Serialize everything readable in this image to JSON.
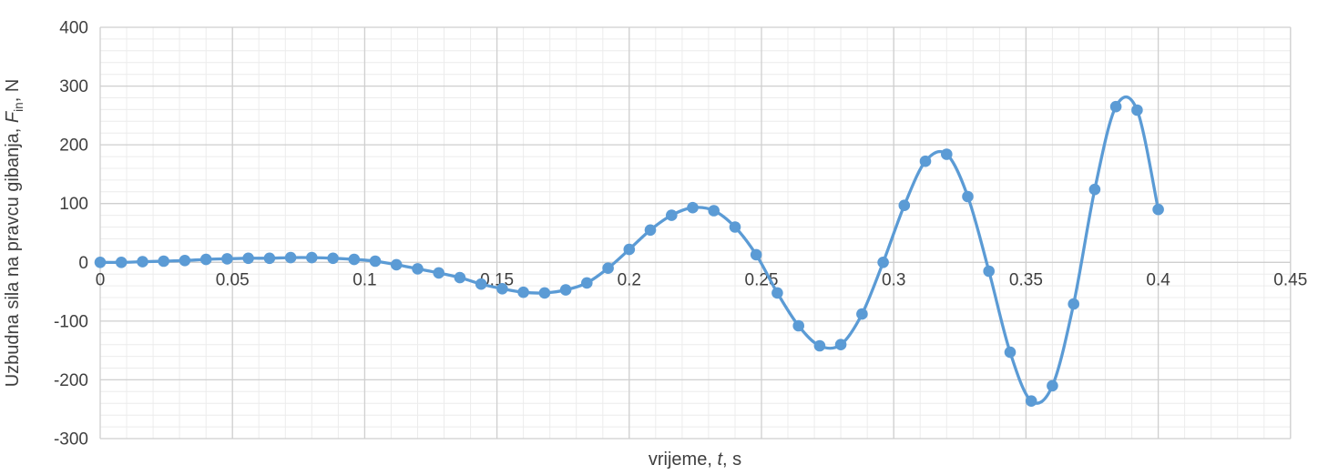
{
  "chart_data": {
    "type": "line",
    "title": "",
    "xlabel_prefix": "vrijeme, ",
    "xlabel_symbol": "t",
    "xlabel_suffix": ", s",
    "ylabel_prefix": "Uzbudna sila na pravcu gibanja, ",
    "ylabel_symbol": "F",
    "ylabel_subscript": "in",
    "ylabel_suffix": ", N",
    "xlim": [
      0,
      0.45
    ],
    "ylim": [
      -300,
      400
    ],
    "x_major_step": 0.05,
    "x_minor_step": 0.01,
    "y_major_step": 100,
    "y_minor_step": 20,
    "grid": "major-and-minor",
    "legend_position": "none",
    "x_tick_labels": [
      "0",
      "0.05",
      "0.1",
      "0.15",
      "0.2",
      "0.25",
      "0.3",
      "0.35",
      "0.4",
      "0.45"
    ],
    "x_tick_values": [
      0,
      0.05,
      0.1,
      0.15,
      0.2,
      0.25,
      0.3,
      0.35,
      0.4,
      0.45
    ],
    "y_tick_labels": [
      "400",
      "300",
      "200",
      "100",
      "0",
      "-100",
      "-200",
      "-300"
    ],
    "y_tick_values": [
      400,
      300,
      200,
      100,
      0,
      -100,
      -200,
      -300
    ],
    "series": [
      {
        "name": "uzbudna-sila",
        "marker": "circle",
        "smooth": true,
        "x": [
          0,
          0.008,
          0.016,
          0.024,
          0.032,
          0.04,
          0.048,
          0.056,
          0.064,
          0.072,
          0.08,
          0.088,
          0.096,
          0.104,
          0.112,
          0.12,
          0.128,
          0.136,
          0.144,
          0.152,
          0.16,
          0.168,
          0.176,
          0.184,
          0.192,
          0.2,
          0.208,
          0.216,
          0.224,
          0.232,
          0.24,
          0.248,
          0.256,
          0.264,
          0.272,
          0.28,
          0.288,
          0.296,
          0.304,
          0.312,
          0.32,
          0.328,
          0.336,
          0.344,
          0.352,
          0.36,
          0.368,
          0.376,
          0.384,
          0.392,
          0.4
        ],
        "y": [
          0,
          0,
          1,
          2,
          3,
          5,
          6,
          7,
          7,
          8,
          8,
          7,
          5,
          2,
          -4,
          -11,
          -18,
          -26,
          -37,
          -45,
          -51,
          -52,
          -47,
          -35,
          -10,
          22,
          55,
          80,
          93,
          88,
          60,
          13,
          -52,
          -108,
          -142,
          -140,
          -88,
          0,
          97,
          172,
          184,
          112,
          -15,
          -153,
          -236,
          -210,
          -71,
          124,
          265,
          259,
          90
        ]
      }
    ],
    "colors": {
      "line": "#5B9BD5",
      "marker": "#5B9BD5",
      "grid_major": "#CFCFCF",
      "grid_minor": "#ECECEC",
      "text": "#3F3F3F",
      "background": "#FFFFFF"
    }
  }
}
